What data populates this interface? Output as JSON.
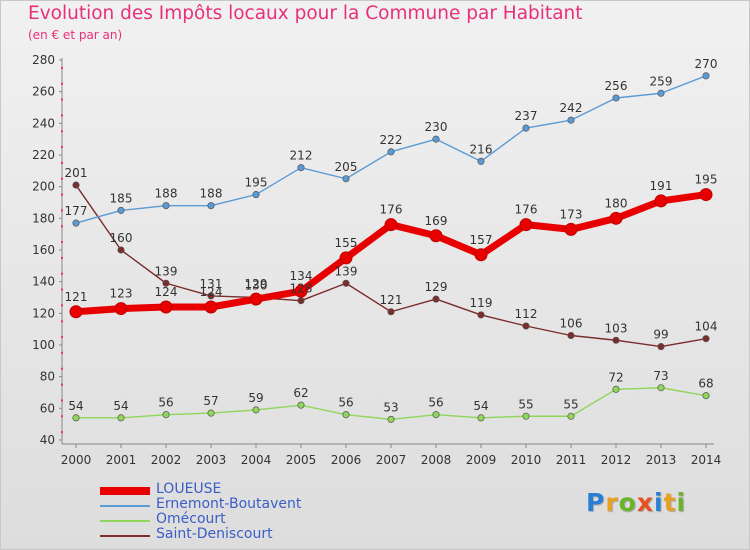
{
  "title": "Evolution des Impôts locaux pour la Commune par Habitant",
  "subtitle": "(en € et par an)",
  "logo_text": "Proxiti",
  "logo_colors": [
    "#2a7fd4",
    "#e8a020",
    "#6ab42a",
    "#e85020",
    "#2a7fd4",
    "#e8a020",
    "#6ab42a"
  ],
  "chart_data": {
    "type": "line",
    "x": [
      2000,
      2001,
      2002,
      2003,
      2004,
      2005,
      2006,
      2007,
      2008,
      2009,
      2010,
      2011,
      2012,
      2013,
      2014
    ],
    "ylim": [
      40,
      280
    ],
    "yticks": [
      40,
      60,
      80,
      100,
      120,
      140,
      160,
      180,
      200,
      220,
      240,
      260,
      280
    ],
    "grid": false,
    "legend_position": "bottom-left",
    "series": [
      {
        "name": "LOUEUSE",
        "color": "#e80000",
        "values": [
          121,
          123,
          124,
          124,
          129,
          134,
          155,
          176,
          169,
          157,
          176,
          173,
          180,
          191,
          195
        ],
        "labels": [
          "121",
          "123",
          "124",
          "124",
          "129",
          "134",
          "155",
          "176",
          "169",
          "157",
          "176",
          "173",
          "180",
          "191",
          "195"
        ]
      },
      {
        "name": "Ernemont-Boutavent",
        "color": "#5b9bd5",
        "values": [
          177,
          185,
          188,
          188,
          195,
          212,
          205,
          222,
          230,
          216,
          237,
          242,
          256,
          259,
          270
        ],
        "labels": [
          "177",
          "185",
          "188",
          "188",
          "195",
          "212",
          "205",
          "222",
          "230",
          "216",
          "237",
          "242",
          "256",
          "259",
          "270"
        ]
      },
      {
        "name": "Omécourt",
        "color": "#8fd65a",
        "values": [
          54,
          54,
          56,
          57,
          59,
          62,
          56,
          53,
          56,
          54,
          55,
          55,
          72,
          73,
          68
        ],
        "labels": [
          "54",
          "54",
          "56",
          "57",
          "59",
          "62",
          "56",
          "53",
          "56",
          "54",
          "55",
          "55",
          "72",
          "73",
          "68"
        ]
      },
      {
        "name": "Saint-Deniscourt",
        "color": "#7b2c2c",
        "values": [
          201,
          160,
          139,
          131,
          130,
          128,
          139,
          121,
          129,
          119,
          112,
          106,
          103,
          99,
          104
        ],
        "labels": [
          "201",
          "160",
          "139",
          "131",
          "130",
          "128",
          "139",
          "121",
          "129",
          "119",
          "112",
          "106",
          "103",
          "99",
          "104"
        ]
      }
    ]
  }
}
